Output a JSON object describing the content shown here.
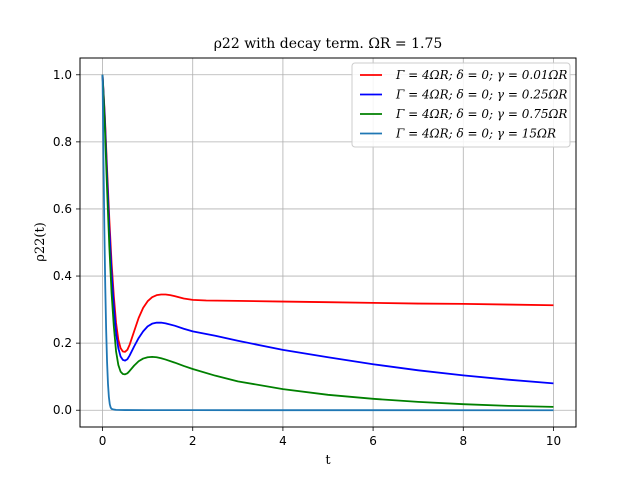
{
  "chart_data": {
    "type": "line",
    "title": "ρ22 with decay term. ΩR = 1.75",
    "xlabel": "t",
    "ylabel": "ρ22(t)",
    "xlim": [
      -0.5,
      10.5
    ],
    "ylim": [
      -0.05,
      1.05
    ],
    "xticks": [
      0,
      2,
      4,
      6,
      8,
      10
    ],
    "yticks": [
      0.0,
      0.2,
      0.4,
      0.6,
      0.8,
      1.0
    ],
    "xtick_labels": [
      "0",
      "2",
      "4",
      "6",
      "8",
      "10"
    ],
    "ytick_labels": [
      "0.0",
      "0.2",
      "0.4",
      "0.6",
      "0.8",
      "1.0"
    ],
    "grid": true,
    "legend_position": "top-right",
    "series": [
      {
        "name": "Γ = 4ΩR; δ = 0; γ = 0.01ΩR",
        "color": "#ff0000",
        "points": [
          [
            0,
            1.0
          ],
          [
            0.05,
            0.88
          ],
          [
            0.1,
            0.72
          ],
          [
            0.15,
            0.57
          ],
          [
            0.2,
            0.44
          ],
          [
            0.25,
            0.34
          ],
          [
            0.3,
            0.26
          ],
          [
            0.35,
            0.21
          ],
          [
            0.4,
            0.185
          ],
          [
            0.45,
            0.175
          ],
          [
            0.5,
            0.174
          ],
          [
            0.55,
            0.18
          ],
          [
            0.6,
            0.195
          ],
          [
            0.7,
            0.235
          ],
          [
            0.8,
            0.275
          ],
          [
            0.9,
            0.305
          ],
          [
            1.0,
            0.325
          ],
          [
            1.1,
            0.337
          ],
          [
            1.2,
            0.343
          ],
          [
            1.3,
            0.345
          ],
          [
            1.4,
            0.345
          ],
          [
            1.5,
            0.343
          ],
          [
            1.6,
            0.34
          ],
          [
            1.8,
            0.333
          ],
          [
            2.0,
            0.329
          ],
          [
            2.3,
            0.327
          ],
          [
            3.0,
            0.326
          ],
          [
            4.0,
            0.324
          ],
          [
            5.0,
            0.322
          ],
          [
            6.0,
            0.32
          ],
          [
            7.0,
            0.318
          ],
          [
            8.0,
            0.317
          ],
          [
            9.0,
            0.315
          ],
          [
            10.0,
            0.313
          ]
        ]
      },
      {
        "name": "Γ = 4ΩR; δ = 0; γ = 0.25ΩR",
        "color": "#0000ff",
        "points": [
          [
            0,
            1.0
          ],
          [
            0.05,
            0.87
          ],
          [
            0.1,
            0.7
          ],
          [
            0.15,
            0.54
          ],
          [
            0.2,
            0.41
          ],
          [
            0.25,
            0.31
          ],
          [
            0.3,
            0.23
          ],
          [
            0.35,
            0.185
          ],
          [
            0.4,
            0.16
          ],
          [
            0.45,
            0.15
          ],
          [
            0.5,
            0.148
          ],
          [
            0.55,
            0.152
          ],
          [
            0.6,
            0.163
          ],
          [
            0.7,
            0.19
          ],
          [
            0.8,
            0.215
          ],
          [
            0.9,
            0.235
          ],
          [
            1.0,
            0.25
          ],
          [
            1.1,
            0.258
          ],
          [
            1.2,
            0.261
          ],
          [
            1.3,
            0.261
          ],
          [
            1.4,
            0.259
          ],
          [
            1.6,
            0.252
          ],
          [
            1.8,
            0.243
          ],
          [
            2.0,
            0.235
          ],
          [
            2.5,
            0.222
          ],
          [
            3.0,
            0.207
          ],
          [
            4.0,
            0.18
          ],
          [
            5.0,
            0.158
          ],
          [
            6.0,
            0.137
          ],
          [
            7.0,
            0.119
          ],
          [
            8.0,
            0.104
          ],
          [
            9.0,
            0.091
          ],
          [
            10.0,
            0.08
          ]
        ]
      },
      {
        "name": "Γ = 4ΩR; δ = 0; γ = 0.75ΩR",
        "color": "#008000",
        "points": [
          [
            0,
            1.0
          ],
          [
            0.05,
            0.85
          ],
          [
            0.1,
            0.66
          ],
          [
            0.15,
            0.49
          ],
          [
            0.2,
            0.35
          ],
          [
            0.25,
            0.25
          ],
          [
            0.3,
            0.175
          ],
          [
            0.35,
            0.135
          ],
          [
            0.4,
            0.115
          ],
          [
            0.45,
            0.108
          ],
          [
            0.5,
            0.107
          ],
          [
            0.55,
            0.11
          ],
          [
            0.6,
            0.117
          ],
          [
            0.7,
            0.133
          ],
          [
            0.8,
            0.146
          ],
          [
            0.9,
            0.154
          ],
          [
            1.0,
            0.158
          ],
          [
            1.1,
            0.159
          ],
          [
            1.2,
            0.158
          ],
          [
            1.3,
            0.155
          ],
          [
            1.4,
            0.151
          ],
          [
            1.6,
            0.142
          ],
          [
            1.8,
            0.132
          ],
          [
            2.0,
            0.123
          ],
          [
            2.5,
            0.103
          ],
          [
            3.0,
            0.086
          ],
          [
            4.0,
            0.063
          ],
          [
            5.0,
            0.046
          ],
          [
            6.0,
            0.034
          ],
          [
            7.0,
            0.025
          ],
          [
            8.0,
            0.018
          ],
          [
            9.0,
            0.013
          ],
          [
            10.0,
            0.01
          ]
        ]
      },
      {
        "name": "Γ = 4ΩR; δ = 0; γ = 15ΩR",
        "color": "#1f77b4",
        "points": [
          [
            0,
            1.0
          ],
          [
            0.02,
            0.75
          ],
          [
            0.04,
            0.54
          ],
          [
            0.06,
            0.37
          ],
          [
            0.08,
            0.24
          ],
          [
            0.1,
            0.145
          ],
          [
            0.12,
            0.08
          ],
          [
            0.14,
            0.04
          ],
          [
            0.16,
            0.018
          ],
          [
            0.18,
            0.008
          ],
          [
            0.2,
            0.004
          ],
          [
            0.25,
            0.002
          ],
          [
            0.3,
            0.001
          ],
          [
            0.5,
            0.0005
          ],
          [
            1.0,
            0.0003
          ],
          [
            2.0,
            0.0002
          ],
          [
            10.0,
            0.0
          ]
        ]
      }
    ]
  }
}
